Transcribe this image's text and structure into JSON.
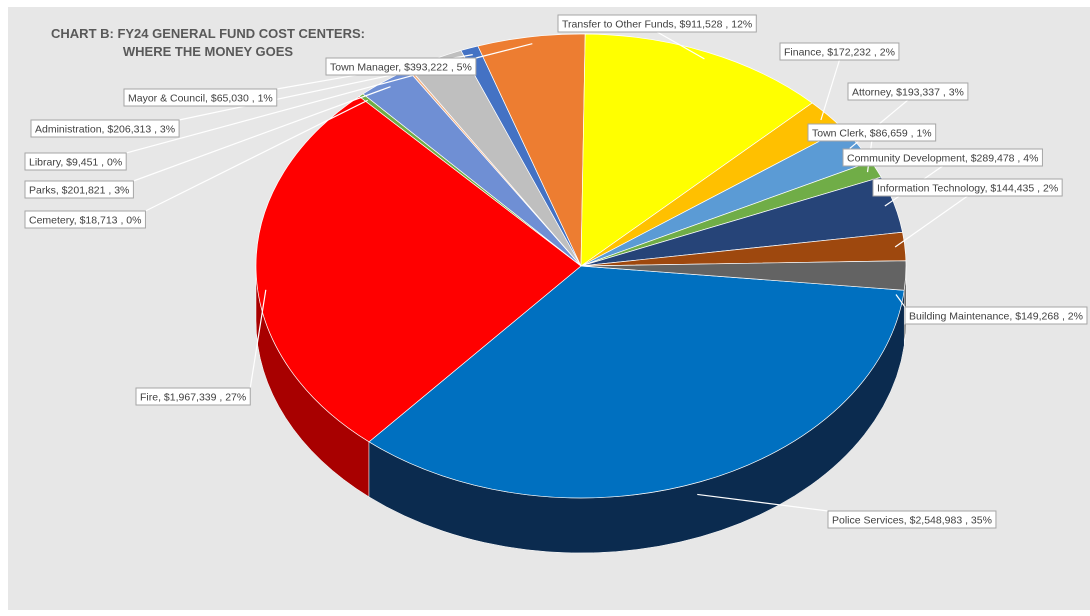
{
  "chart_data": {
    "type": "pie",
    "title_lines": [
      "CHART B: FY24 GENERAL FUND COST CENTERS:",
      "WHERE THE MONEY GOES"
    ],
    "slices": [
      {
        "name": "Police Services",
        "value": 2548983,
        "pct_label": "35%",
        "color": "#0070c0",
        "side": "#0b2b4f"
      },
      {
        "name": "Fire",
        "value": 1967339,
        "pct_label": "27%",
        "color": "#ff0000",
        "side": "#a80000"
      },
      {
        "name": "Cemetery",
        "value": 18713,
        "pct_label": "0%",
        "color": "#70ad47",
        "side": "#3f6a24"
      },
      {
        "name": "Parks",
        "value": 201821,
        "pct_label": "3%",
        "color": "#6f8fd4",
        "side": "#3e5a99"
      },
      {
        "name": "Library",
        "value": 9451,
        "pct_label": "0%",
        "color": "#f4b183",
        "side": "#b07a52"
      },
      {
        "name": "Administration",
        "value": 206313,
        "pct_label": "3%",
        "color": "#bfbfbf",
        "side": "#7f7f7f"
      },
      {
        "name": "Mayor & Council",
        "value": 65030,
        "pct_label": "1%",
        "color": "#4472c4",
        "side": "#2a4a87"
      },
      {
        "name": "Town Manager",
        "value": 393222,
        "pct_label": "5%",
        "color": "#ed7d31",
        "side": "#a5521b"
      },
      {
        "name": "Transfer to Other Funds",
        "value": 911528,
        "pct_label": "12%",
        "color": "#ffff00",
        "side": "#b3b300"
      },
      {
        "name": "Finance",
        "value": 172232,
        "pct_label": "2%",
        "color": "#ffc000",
        "side": "#b38600"
      },
      {
        "name": "Attorney",
        "value": 193337,
        "pct_label": "3%",
        "color": "#5b9bd5",
        "side": "#3a6d9c"
      },
      {
        "name": "Town Clerk",
        "value": 86659,
        "pct_label": "1%",
        "color": "#70ad47",
        "side": "#4a7a2c"
      },
      {
        "name": "Community Development",
        "value": 289478,
        "pct_label": "4%",
        "color": "#264478",
        "side": "#13254a"
      },
      {
        "name": "Information Technology",
        "value": 144435,
        "pct_label": "2%",
        "color": "#9e480e",
        "side": "#6a2f08"
      },
      {
        "name": "Building Maintenance",
        "value": 149268,
        "pct_label": "2%",
        "color": "#636363",
        "side": "#3a3a3a"
      }
    ],
    "labels": [
      {
        "slice": 0,
        "text": "Police Services, $2,548,983 , 35%"
      },
      {
        "slice": 1,
        "text": "Fire, $1,967,339 , 27%"
      },
      {
        "slice": 2,
        "text": "Cemetery, $18,713 , 0%"
      },
      {
        "slice": 3,
        "text": "Parks, $201,821 , 3%"
      },
      {
        "slice": 4,
        "text": "Library, $9,451 , 0%"
      },
      {
        "slice": 5,
        "text": "Administration, $206,313 , 3%"
      },
      {
        "slice": 6,
        "text": "Mayor & Council, $65,030 , 1%"
      },
      {
        "slice": 7,
        "text": "Town Manager, $393,222 , 5%"
      },
      {
        "slice": 8,
        "text": "Transfer to Other Funds, $911,528 , 12%"
      },
      {
        "slice": 9,
        "text": "Finance, $172,232 , 2%"
      },
      {
        "slice": 10,
        "text": "Attorney, $193,337 , 3%"
      },
      {
        "slice": 11,
        "text": "Town Clerk, $86,659 , 1%"
      },
      {
        "slice": 12,
        "text": "Community Development, $289,478 , 4%"
      },
      {
        "slice": 13,
        "text": "Information Technology, $144,435 , 2%"
      },
      {
        "slice": 14,
        "text": "Building Maintenance, $149,268 , 2%"
      }
    ],
    "legend": "none",
    "style": "3d-pie"
  }
}
